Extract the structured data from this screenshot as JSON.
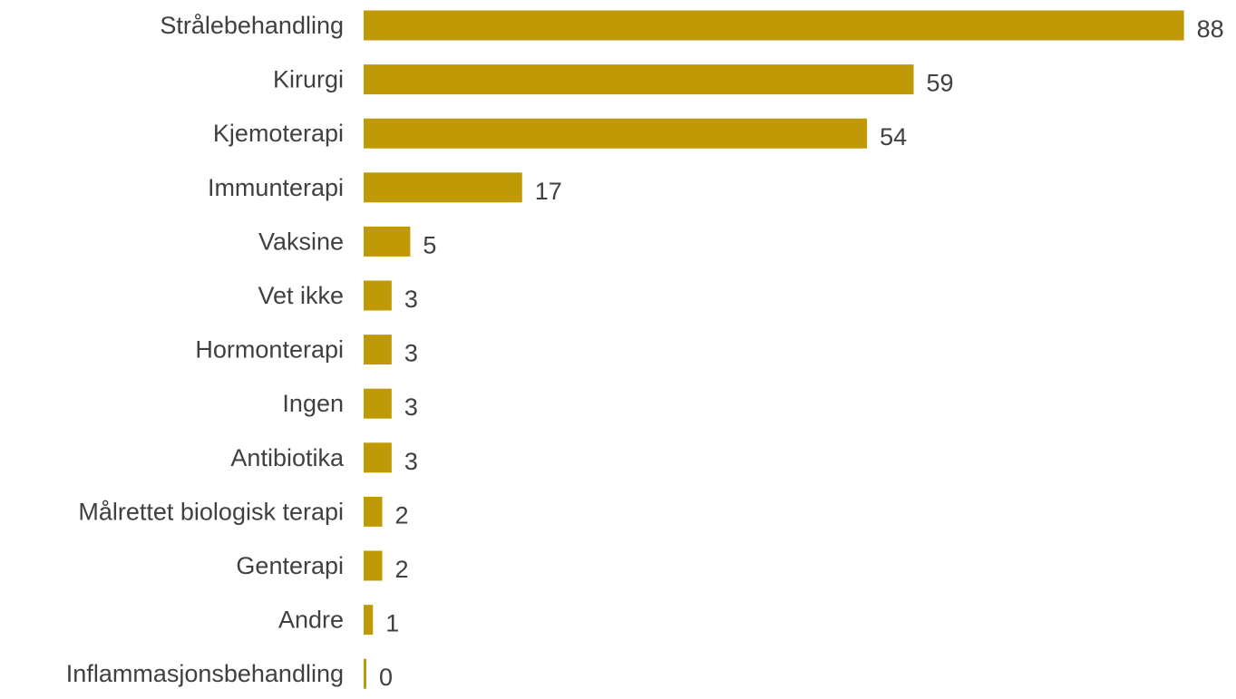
{
  "chart_data": {
    "type": "bar",
    "orientation": "horizontal",
    "categories": [
      "Strålebehandling",
      "Kirurgi",
      "Kjemoterapi",
      "Immunterapi",
      "Vaksine",
      "Vet ikke",
      "Hormonterapi",
      "Ingen",
      "Antibiotika",
      "Målrettet biologisk terapi",
      "Genterapi",
      "Andre",
      "Inflammasjonsbehandling"
    ],
    "values": [
      88,
      59,
      54,
      17,
      5,
      3,
      3,
      3,
      3,
      2,
      2,
      1,
      0
    ],
    "data_labels": [
      "88",
      "59",
      "54",
      "17",
      "5",
      "3",
      "3",
      "3",
      "3",
      "2",
      "2",
      "1",
      "0"
    ],
    "bar_color": "#bf9a06",
    "title": "",
    "xlabel": "",
    "ylabel": "",
    "grid": false,
    "legend": "none"
  }
}
